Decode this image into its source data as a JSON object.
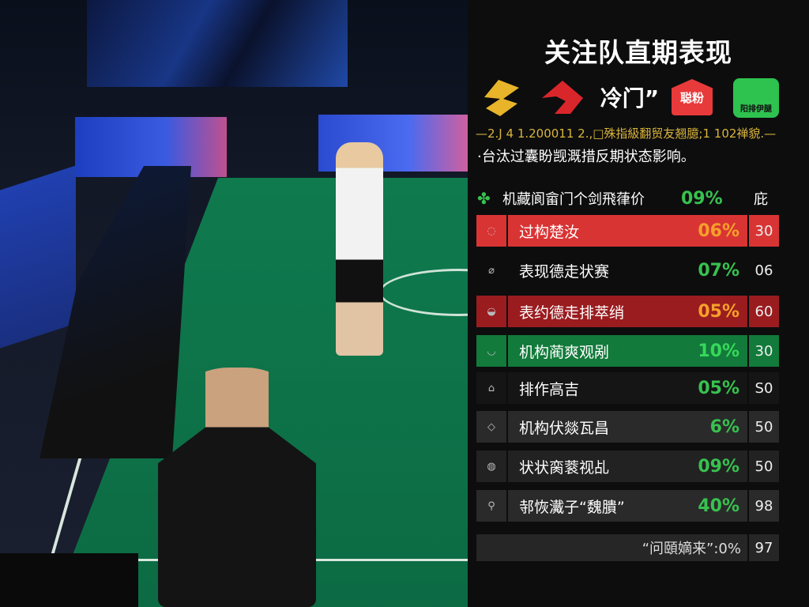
{
  "panel": {
    "title": "关注队直期表现",
    "logos": [
      {
        "name": "yellow-team-logo",
        "color": "#e8b52a"
      },
      {
        "name": "red-team-logo",
        "color": "#d9262b"
      },
      {
        "name": "text-logo",
        "text": "冷门”"
      },
      {
        "name": "red-badge",
        "text": "聪粉",
        "color": "#e83a3a"
      },
      {
        "name": "green-badge",
        "text": "阳排伊腿",
        "color": "#2ec24f"
      }
    ],
    "subtitle_line1": "—2.J 4 1.200011 2.,□殊指級翻贸友翘臆;1 102禅貌.—",
    "subtitle_line2": "·台汰过囊盼觊溉措反期状态影响。",
    "header": {
      "label": "机藏阆畲门个剑飛葎价",
      "pct": "09%",
      "end": "庇"
    },
    "rows": [
      {
        "label": "过构楚汝",
        "pct": "06%",
        "end": "30",
        "bg": "#d93434",
        "pct_color": "#f5a02a"
      },
      {
        "label": "表现德走状赛",
        "pct": "07%",
        "end": "06",
        "bg": "#0d0d0e",
        "pct_color": "#37c24e"
      },
      {
        "label": "表约德走排萃绡",
        "pct": "05%",
        "end": "60",
        "bg": "#9a1c1f",
        "pct_color": "#f5a02a"
      },
      {
        "label": "机构蔺爽观剐",
        "pct": "10%",
        "end": "30",
        "bg": "#127a3a",
        "pct_color": "#37d85a"
      },
      {
        "label": "排作高吉",
        "pct": "05%",
        "end": "S0",
        "bg": "#151516",
        "pct_color": "#37c24e"
      },
      {
        "label": "机构伏燚瓦昌",
        "pct": "6%",
        "end": "50",
        "bg": "#2a2a2b",
        "pct_color": "#37c24e"
      },
      {
        "label": "状状脔蓘视乩",
        "pct": "09%",
        "end": "50",
        "bg": "#222223",
        "pct_color": "#37c24e"
      },
      {
        "label": "邿恢瀻子“魏膭”",
        "pct": "40%",
        "end": "98",
        "bg": "#2a2a2b",
        "pct_color": "#37c24e"
      }
    ],
    "footer": {
      "label": "“问頤嫡来”:0%",
      "end": "97"
    }
  }
}
